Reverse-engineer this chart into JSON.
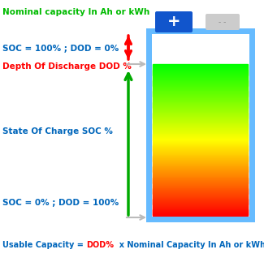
{
  "title": "Nominal capacity In Ah or kWh",
  "title_color": "#00bb00",
  "title_fontsize": 7.5,
  "soc100_text": "SOC = 100% ; DOD = 0%",
  "soc0_text": "SOC = 0% ; DOD = 100%",
  "soc_label": "State Of Charge SOC %",
  "dod_label": "Depth Of Discharge DOD %",
  "dod_label_color": "#ff0000",
  "soc_label_color": "#0066bb",
  "soc_text_color": "#0066bb",
  "bottom_text_parts": [
    "Usable Capacity = ",
    "DOD%",
    "  x Nominal Capacity In Ah or kWh"
  ],
  "bottom_text_colors": [
    "#0066bb",
    "#ff0000",
    "#0066bb"
  ],
  "battery_border_color": "#66bbff",
  "positive_terminal_color": "#1155cc",
  "negative_terminal_color": "#cccccc",
  "arrow_green_color": "#00aa00",
  "arrow_red_color": "#ff0000",
  "arrow_gray_color": "#bbbbbb"
}
